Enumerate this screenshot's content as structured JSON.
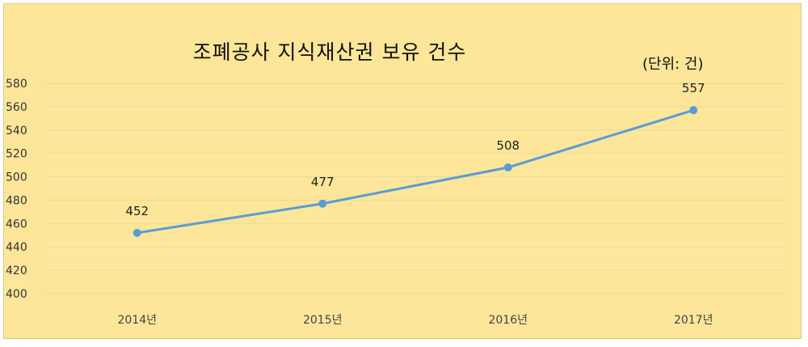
{
  "chart_data": {
    "type": "line",
    "title": "조폐공사 지식재산권 보유 건수",
    "unit_note": "(단위: 건)",
    "categories": [
      "2014년",
      "2015년",
      "2016년",
      "2017년"
    ],
    "series": [
      {
        "values": [
          452,
          477,
          508,
          557
        ],
        "color": "#5b9bd5"
      }
    ],
    "data_labels": [
      "452",
      "477",
      "508",
      "557"
    ],
    "y_ticks": [
      "400",
      "420",
      "440",
      "460",
      "480",
      "500",
      "520",
      "540",
      "560",
      "580"
    ],
    "ylim": [
      400,
      580
    ],
    "grid": true,
    "background_color": "#fde699",
    "grid_color": "#e8d8a4"
  }
}
